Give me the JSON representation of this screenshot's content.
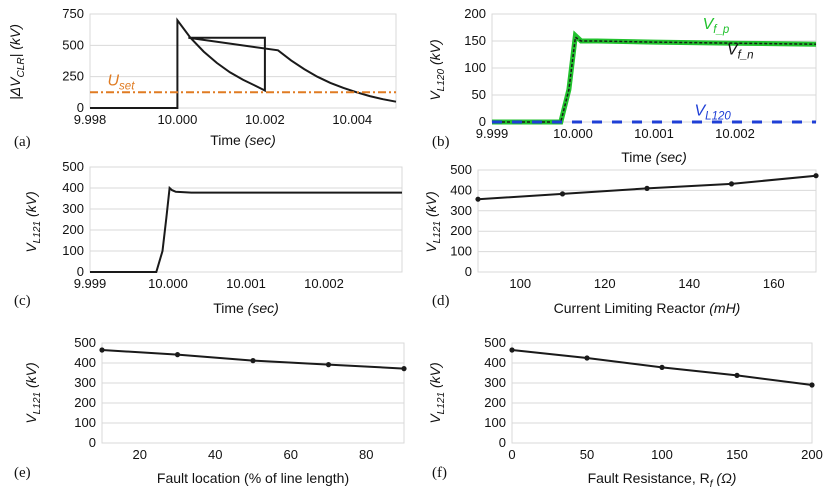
{
  "chart_data": [
    {
      "id": "a",
      "panel_label": "(a)",
      "type": "line",
      "xlabel": "Time",
      "xunit": "(sec)",
      "ylabel": "|ΔV_CLR| (kV)",
      "xlim": [
        9.998,
        10.005
      ],
      "ylim": [
        0,
        750
      ],
      "xticks": [
        9.998,
        10.0,
        10.002,
        10.004
      ],
      "xtick_labels": [
        "9.998",
        "10.000",
        "10.002",
        "10.004"
      ],
      "yticks": [
        0,
        250,
        500,
        750
      ],
      "ytick_labels": [
        "0",
        "250",
        "500",
        "750"
      ],
      "grid": "horizontal",
      "series": [
        {
          "color": "#1a1a1a",
          "x": [
            9.998,
            10.0,
            10.0,
            10.0003,
            10.0006,
            10.0009,
            10.0012,
            10.0015,
            10.0018,
            10.002,
            10.002,
            10.00025,
            10.0023,
            10.0026,
            10.0029,
            10.0032,
            10.0035,
            10.0038,
            10.0041,
            10.0044,
            10.0047,
            10.005
          ],
          "y": [
            0,
            0,
            700,
            560,
            450,
            360,
            285,
            225,
            175,
            140,
            560,
            560,
            460,
            380,
            310,
            250,
            200,
            160,
            125,
            95,
            70,
            50
          ]
        },
        {
          "name": "U_set",
          "color": "#e07b22",
          "dashed": true,
          "x": [
            9.998,
            10.005
          ],
          "y": [
            125,
            125
          ]
        }
      ],
      "annotations": [
        {
          "text": "U",
          "sub": "set",
          "color": "#e07b22",
          "x": 9.9984,
          "y": 180
        }
      ]
    },
    {
      "id": "b",
      "panel_label": "(b)",
      "type": "line",
      "xlabel": "Time",
      "xunit": "(sec)",
      "ylabel": "V_L120 (kV)",
      "xlim": [
        9.999,
        10.003
      ],
      "ylim": [
        0,
        200
      ],
      "xticks": [
        9.999,
        10.0,
        10.001,
        10.002
      ],
      "xtick_labels": [
        "9.999",
        "10.000",
        "10.001",
        "10.002"
      ],
      "yticks": [
        0,
        50,
        100,
        150,
        200
      ],
      "ytick_labels": [
        "0",
        "50",
        "100",
        "150",
        "200"
      ],
      "grid": "horizontal",
      "series": [
        {
          "name": "V_f_p",
          "color": "#22c22e",
          "x": [
            9.999,
            9.99985,
            9.99995,
            10.00003,
            10.0001,
            10.0003,
            10.001,
            10.002,
            10.003
          ],
          "y": [
            0,
            0,
            60,
            160,
            150,
            150,
            148,
            146,
            144
          ]
        },
        {
          "name": "V_f_n",
          "color": "#1a1a1a",
          "dashed": true,
          "x": [
            9.999,
            9.99985,
            9.99995,
            10.00003,
            10.0001,
            10.0003,
            10.001,
            10.002,
            10.003
          ],
          "y": [
            0,
            0,
            60,
            157,
            150,
            150,
            148,
            146,
            144
          ]
        },
        {
          "name": "V_L120",
          "color": "#1f3fd6",
          "dashed": true,
          "x": [
            9.999,
            10.003
          ],
          "y": [
            0,
            0
          ]
        }
      ],
      "annotations": [
        {
          "text": "V",
          "sub": "f_p",
          "color": "#22c22e",
          "x": 10.0016,
          "y": 172
        },
        {
          "text": "V",
          "sub": "f_n",
          "color": "#111111",
          "x": 10.0019,
          "y": 125
        },
        {
          "text": "V",
          "sub": "L120",
          "color": "#1f3fd6",
          "x": 10.0015,
          "y": 12
        }
      ]
    },
    {
      "id": "c",
      "panel_label": "(c)",
      "type": "line",
      "xlabel": "Time",
      "xunit": "(sec)",
      "ylabel": "V_L121 (kV)",
      "xlim": [
        9.999,
        10.003
      ],
      "ylim": [
        0,
        500
      ],
      "xticks": [
        9.999,
        10.0,
        10.001,
        10.002
      ],
      "xtick_labels": [
        "9.999",
        "10.000",
        "10.001",
        "10.002"
      ],
      "yticks": [
        0,
        100,
        200,
        300,
        400,
        500
      ],
      "ytick_labels": [
        "0",
        "100",
        "200",
        "300",
        "400",
        "500"
      ],
      "grid": "horizontal",
      "series": [
        {
          "color": "#1a1a1a",
          "x": [
            9.999,
            9.99985,
            9.99993,
            9.99998,
            10.00002,
            10.00005,
            10.0001,
            10.0003,
            10.003
          ],
          "y": [
            0,
            0,
            100,
            260,
            400,
            390,
            382,
            378,
            378
          ]
        }
      ]
    },
    {
      "id": "d",
      "panel_label": "(d)",
      "type": "line",
      "xlabel": "Current Limiting Reactor",
      "xunit": "(mH)",
      "ylabel": "V_L121 (kV)",
      "xlim": [
        90,
        170
      ],
      "ylim": [
        0,
        500
      ],
      "xticks": [
        100,
        120,
        140,
        160
      ],
      "xtick_labels": [
        "100",
        "120",
        "140",
        "160"
      ],
      "yticks": [
        0,
        100,
        200,
        300,
        400,
        500
      ],
      "ytick_labels": [
        "0",
        "100",
        "200",
        "300",
        "400",
        "500"
      ],
      "grid": "horizontal",
      "series": [
        {
          "color": "#1a1a1a",
          "markers": true,
          "x": [
            90,
            110,
            130,
            150,
            170
          ],
          "y": [
            357,
            383,
            410,
            432,
            472
          ]
        }
      ]
    },
    {
      "id": "e",
      "panel_label": "(e)",
      "type": "line",
      "xlabel": "Fault location (% of line length)",
      "xunit": "",
      "ylabel": "V_L121 (kV)",
      "xlim": [
        10,
        90
      ],
      "ylim": [
        0,
        500
      ],
      "xticks": [
        20,
        40,
        60,
        80
      ],
      "xtick_labels": [
        "20",
        "40",
        "60",
        "80"
      ],
      "yticks": [
        0,
        100,
        200,
        300,
        400,
        500
      ],
      "ytick_labels": [
        "0",
        "100",
        "200",
        "300",
        "400",
        "500"
      ],
      "grid": "horizontal",
      "series": [
        {
          "color": "#1a1a1a",
          "markers": true,
          "x": [
            10,
            30,
            50,
            70,
            90
          ],
          "y": [
            465,
            442,
            412,
            392,
            372
          ]
        }
      ]
    },
    {
      "id": "f",
      "panel_label": "(f)",
      "type": "line",
      "xlabel": "Fault Resistance, R_f",
      "xunit": "(Ω)",
      "ylabel": "V_L121 (kV)",
      "xlim": [
        0,
        200
      ],
      "ylim": [
        0,
        500
      ],
      "xticks": [
        0,
        50,
        100,
        150,
        200
      ],
      "xtick_labels": [
        "0",
        "50",
        "100",
        "150",
        "200"
      ],
      "yticks": [
        0,
        100,
        200,
        300,
        400,
        500
      ],
      "ytick_labels": [
        "0",
        "100",
        "200",
        "300",
        "400",
        "500"
      ],
      "grid": "horizontal",
      "series": [
        {
          "color": "#1a1a1a",
          "markers": true,
          "x": [
            0,
            50,
            100,
            150,
            200
          ],
          "y": [
            465,
            425,
            378,
            338,
            290
          ]
        }
      ]
    }
  ]
}
